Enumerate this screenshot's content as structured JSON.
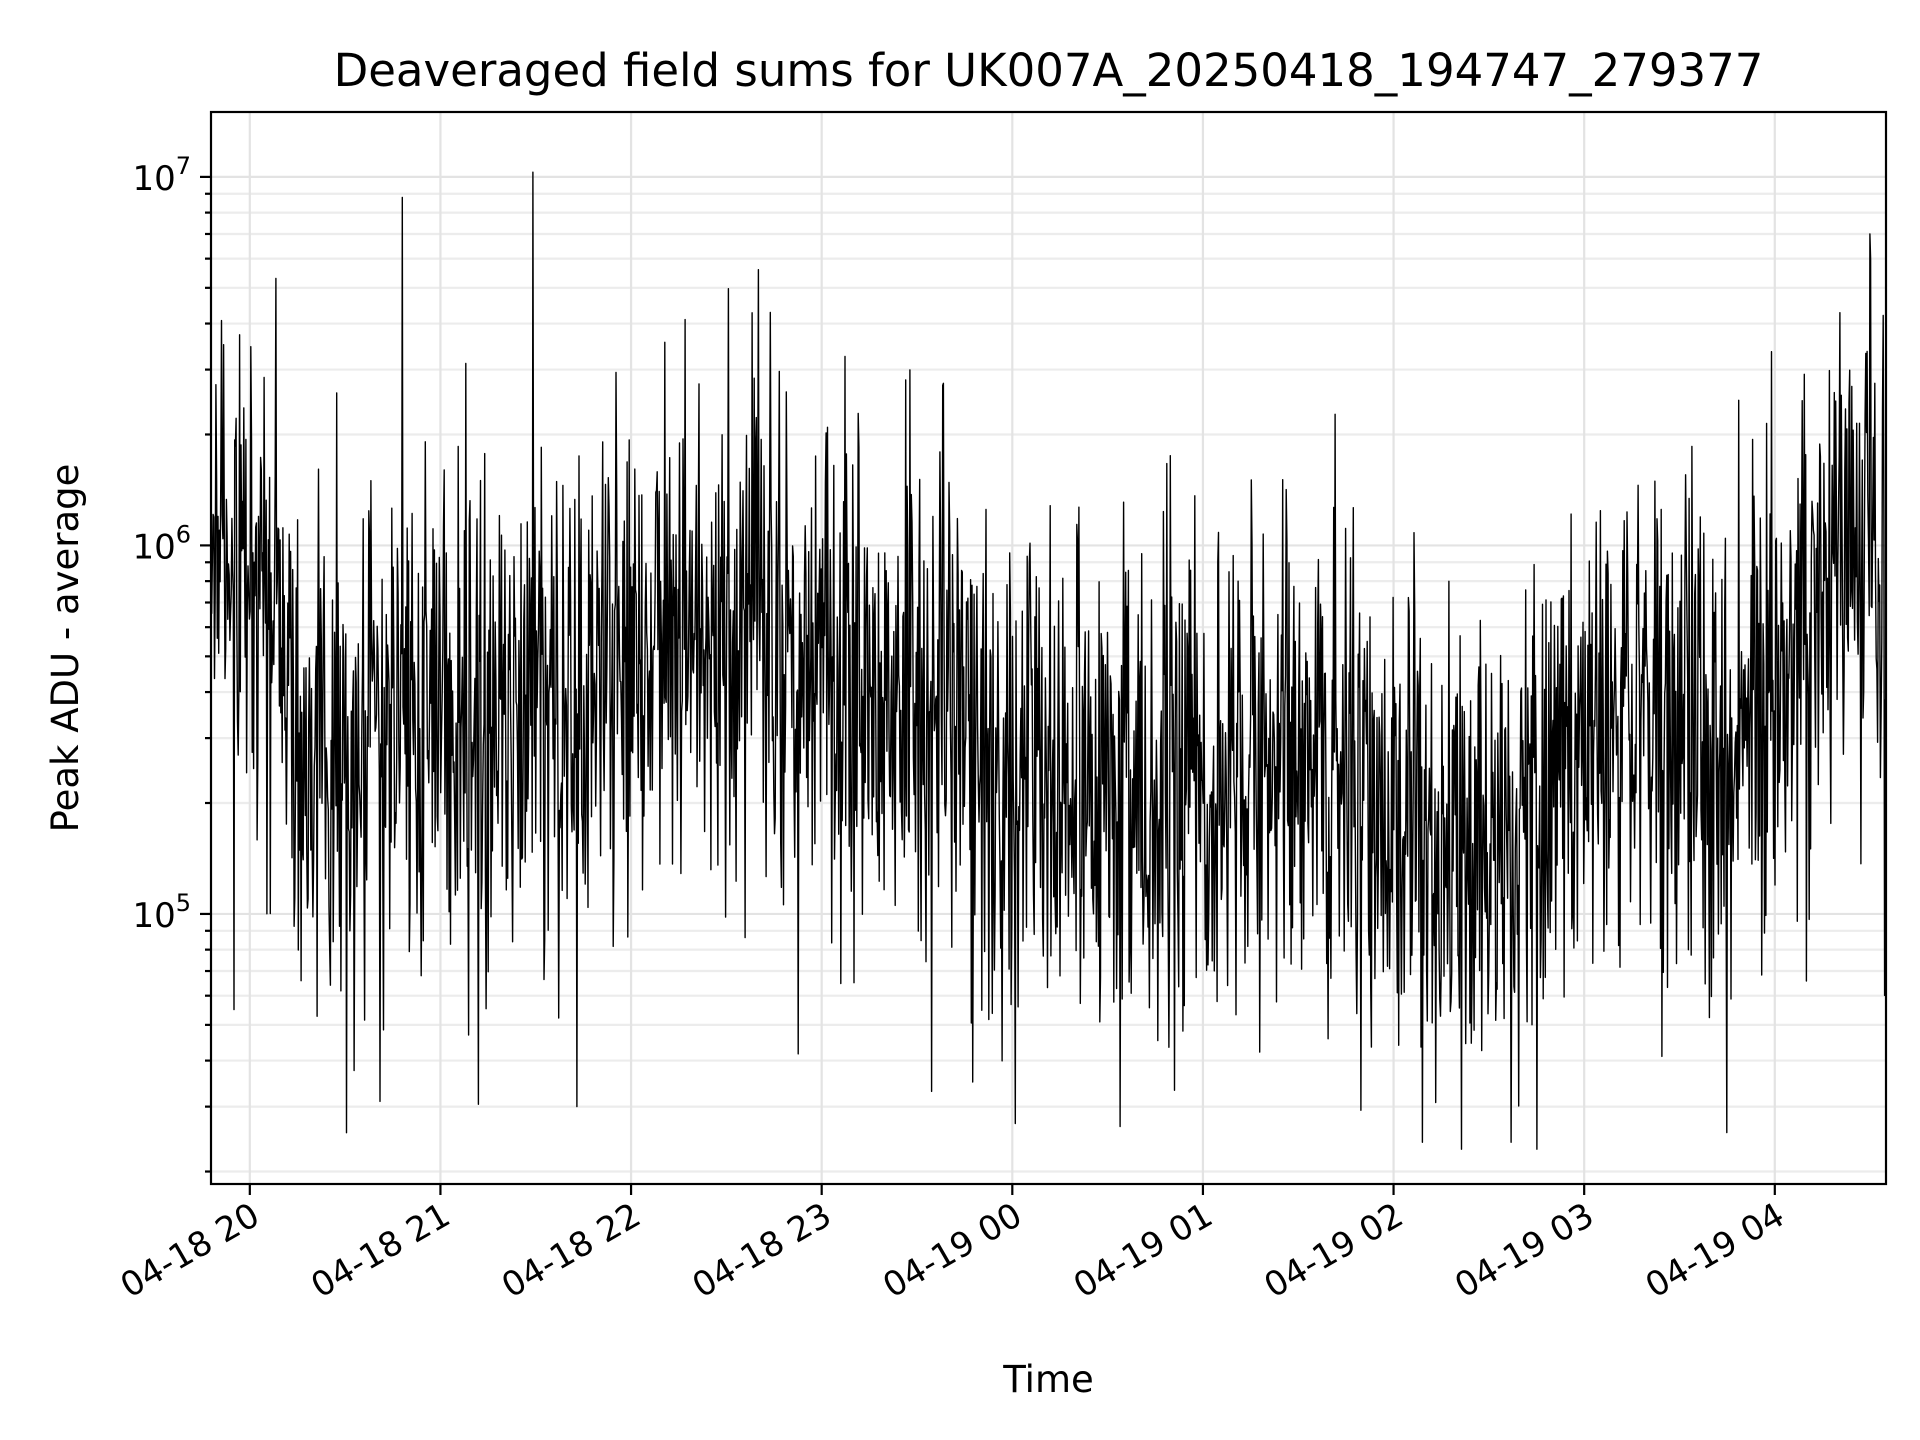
{
  "chart_data": {
    "type": "line",
    "title": "Deaveraged field sums for UK007A_20250418_194747_279377",
    "xlabel": "Time",
    "ylabel": "Peak ADU - average",
    "x_axis": {
      "type": "datetime",
      "range": [
        "2025-04-18T19:47:47",
        "2025-04-19T04:35:00"
      ],
      "tick_values": [
        "2025-04-18T20:00",
        "2025-04-18T21:00",
        "2025-04-18T22:00",
        "2025-04-18T23:00",
        "2025-04-19T00:00",
        "2025-04-19T01:00",
        "2025-04-19T02:00",
        "2025-04-19T03:00",
        "2025-04-19T04:00"
      ],
      "tick_labels": [
        "04-18 20",
        "04-18 21",
        "04-18 22",
        "04-18 23",
        "04-19 00",
        "04-19 01",
        "04-19 02",
        "04-19 03",
        "04-19 04"
      ]
    },
    "y_axis": {
      "scale": "log",
      "range": [
        18500,
        15000000
      ],
      "tick_values": [
        100000,
        1000000,
        10000000
      ],
      "tick_labels": [
        {
          "base": "10",
          "exp": "5"
        },
        {
          "base": "10",
          "exp": "6"
        },
        {
          "base": "10",
          "exp": "7"
        }
      ]
    },
    "grid": true,
    "series_color": "#000000",
    "series": [
      {
        "x": [
          "2025-04-18T19:48",
          "2025-04-18T20:00",
          "2025-04-18T20:15",
          "2025-04-18T20:30",
          "2025-04-18T20:45",
          "2025-04-18T21:00",
          "2025-04-18T21:15",
          "2025-04-18T21:30",
          "2025-04-18T21:45",
          "2025-04-18T22:00",
          "2025-04-18T22:15",
          "2025-04-18T22:30",
          "2025-04-18T22:45",
          "2025-04-18T23:00",
          "2025-04-18T23:15",
          "2025-04-18T23:30",
          "2025-04-18T23:45",
          "2025-04-19T00:00",
          "2025-04-19T00:15",
          "2025-04-19T00:30",
          "2025-04-19T00:45",
          "2025-04-19T01:00",
          "2025-04-19T01:15",
          "2025-04-19T01:30",
          "2025-04-19T01:45",
          "2025-04-19T02:00",
          "2025-04-19T02:15",
          "2025-04-19T02:30",
          "2025-04-19T02:45",
          "2025-04-19T03:00",
          "2025-04-19T03:15",
          "2025-04-19T03:30",
          "2025-04-19T03:45",
          "2025-04-19T04:00",
          "2025-04-19T04:15",
          "2025-04-19T04:30",
          "2025-04-19T04:35"
        ],
        "y": [
          1000000,
          800000,
          350000,
          250000,
          300000,
          350000,
          300000,
          400000,
          400000,
          500000,
          600000,
          600000,
          550000,
          500000,
          450000,
          450000,
          300000,
          200000,
          200000,
          200000,
          250000,
          250000,
          250000,
          230000,
          230000,
          200000,
          150000,
          150000,
          180000,
          250000,
          350000,
          300000,
          250000,
          400000,
          700000,
          1300000,
          500000
        ],
        "peaks": [
          {
            "x": "2025-04-18T20:48",
            "y": 8800000
          },
          {
            "x": "2025-04-18T21:29",
            "y": 10300000
          },
          {
            "x": "2025-04-18T22:40",
            "y": 5600000
          },
          {
            "x": "2025-04-18T22:17",
            "y": 4100000
          },
          {
            "x": "2025-04-19T04:30",
            "y": 7000000
          }
        ],
        "troughs": [
          {
            "x": "2025-04-18T19:55",
            "y": 55000
          },
          {
            "x": "2025-04-18T20:41",
            "y": 31000
          },
          {
            "x": "2025-04-18T21:43",
            "y": 30000
          },
          {
            "x": "2025-04-19T00:01",
            "y": 27000
          },
          {
            "x": "2025-04-19T00:34",
            "y": 26500
          },
          {
            "x": "2025-04-19T02:09",
            "y": 24000
          },
          {
            "x": "2025-04-19T02:37",
            "y": 24000
          },
          {
            "x": "2025-04-19T03:45",
            "y": 25500
          }
        ]
      }
    ]
  }
}
